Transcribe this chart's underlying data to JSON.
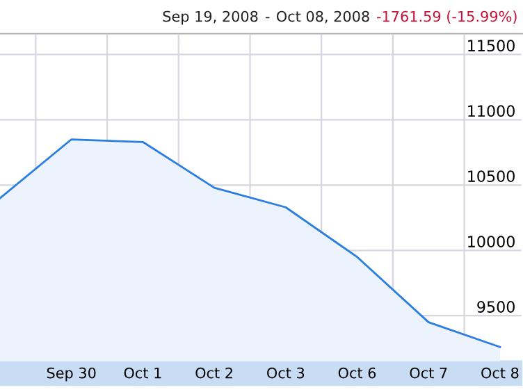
{
  "chart_data": {
    "type": "area",
    "annotations": [
      "Sep 19, 2008",
      "-",
      "Oct 08, 2008",
      "-1761.59 (-15.99%)"
    ],
    "categories": [
      null,
      "Sep 30",
      "Oct 1",
      "Oct 2",
      "Oct 3",
      "Oct 6",
      "Oct 7",
      "Oct 8"
    ],
    "series": [
      {
        "color": "#2a7de1",
        "values": [
          10400,
          10850,
          10830,
          10480,
          10330,
          9950,
          9450,
          9260
        ]
      }
    ],
    "ylim": [
      9150,
      11650
    ],
    "yticks": [
      9500,
      10000,
      10500,
      11000,
      11500
    ],
    "grid": true
  }
}
